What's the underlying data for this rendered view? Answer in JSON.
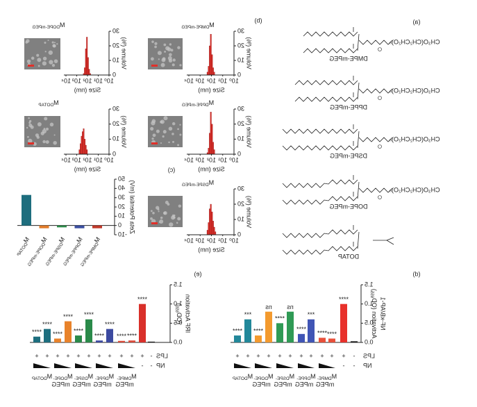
{
  "panel_labels": [
    "(a)",
    "(b)",
    "(c)",
    "(d)",
    "(e)"
  ],
  "structures": [
    "DMPE-mPEG",
    "DPPE-mPEG",
    "DSPE-mPEG",
    "DOPE-mPEG",
    "DOTAP"
  ],
  "peg_group": "CH₃O(CH₂CH₂O)ₙ",
  "chart_data": [
    {
      "type": "histogram",
      "title_prefix": "M",
      "title": "DMPE-mPEG",
      "x_label": "Size (nm)",
      "y_label": "Volume (%)",
      "color": "#e0302a",
      "log_x": true,
      "bins": [
        50,
        63,
        79,
        100,
        126,
        158,
        200,
        251
      ],
      "values": [
        2,
        5,
        14,
        28,
        20,
        6,
        2
      ],
      "xlim": [
        1,
        10000
      ],
      "xticks": [
        {
          "value": 1,
          "label": "10⁰"
        },
        {
          "value": 10,
          "label": "10¹"
        },
        {
          "value": 100,
          "label": "10²"
        },
        {
          "value": 1000,
          "label": "10³"
        },
        {
          "value": 10000,
          "label": "10⁴"
        }
      ],
      "ylim": [
        0,
        30
      ],
      "yticks": [
        0,
        10,
        20,
        30
      ]
    },
    {
      "type": "histogram",
      "title_prefix": "M",
      "title": "DPPE-mPEG",
      "x_label": "Size (nm)",
      "y_label": "Volume (%)",
      "color": "#e0302a",
      "log_x": true,
      "bins": [
        50,
        63,
        79,
        100,
        126,
        158,
        200,
        251
      ],
      "values": [
        3,
        8,
        20,
        28,
        14,
        4,
        1
      ],
      "xlim": [
        1,
        10000
      ],
      "xticks": [
        {
          "value": 1,
          "label": "10⁰"
        },
        {
          "value": 10,
          "label": "10¹"
        },
        {
          "value": 100,
          "label": "10²"
        },
        {
          "value": 1000,
          "label": "10³"
        },
        {
          "value": 10000,
          "label": "10⁴"
        }
      ],
      "ylim": [
        0,
        30
      ],
      "yticks": [
        0,
        10,
        20,
        30
      ]
    },
    {
      "type": "histogram",
      "title_prefix": "M",
      "title": "DSPE-mPEG",
      "x_label": "Size (nm)",
      "y_label": "Volume (%)",
      "color": "#e0302a",
      "log_x": true,
      "bins": [
        40,
        50,
        63,
        79,
        100,
        126,
        158,
        200,
        251
      ],
      "values": [
        2,
        5,
        9,
        15,
        20,
        17,
        8,
        3
      ],
      "xlim": [
        1,
        10000
      ],
      "xticks": [
        {
          "value": 1,
          "label": "10⁰"
        },
        {
          "value": 10,
          "label": "10¹"
        },
        {
          "value": 100,
          "label": "10²"
        },
        {
          "value": 1000,
          "label": "10³"
        },
        {
          "value": 10000,
          "label": "10⁴"
        }
      ],
      "ylim": [
        0,
        30
      ],
      "yticks": [
        0,
        10,
        20,
        30
      ]
    },
    {
      "type": "histogram",
      "title_prefix": "M",
      "title": "DOPE-mPEG",
      "x_label": "Size (nm)",
      "y_label": "Volume (%)",
      "color": "#e0302a",
      "log_x": true,
      "bins": [
        50,
        63,
        79,
        100,
        126,
        158,
        200,
        251
      ],
      "values": [
        1,
        4,
        12,
        26,
        18,
        5,
        1
      ],
      "xlim": [
        1,
        10000
      ],
      "xticks": [
        {
          "value": 1,
          "label": "10⁰"
        },
        {
          "value": 10,
          "label": "10¹"
        },
        {
          "value": 100,
          "label": "10²"
        },
        {
          "value": 1000,
          "label": "10³"
        },
        {
          "value": 10000,
          "label": "10⁴"
        }
      ],
      "ylim": [
        0,
        30
      ],
      "yticks": [
        0,
        10,
        20,
        30
      ]
    },
    {
      "type": "histogram",
      "title_prefix": "M",
      "title": "DOTAP",
      "x_label": "Size (nm)",
      "y_label": "Volume (%)",
      "color": "#e0302a",
      "log_x": true,
      "bins": [
        100,
        126,
        158,
        200,
        251,
        316,
        398,
        501,
        631
      ],
      "values": [
        3,
        6,
        10,
        17,
        15,
        12,
        7,
        3
      ],
      "xlim": [
        1,
        10000
      ],
      "xticks": [
        {
          "value": 1,
          "label": "10⁰"
        },
        {
          "value": 10,
          "label": "10¹"
        },
        {
          "value": 100,
          "label": "10²"
        },
        {
          "value": 1000,
          "label": "10³"
        },
        {
          "value": 10000,
          "label": "10⁴"
        }
      ],
      "ylim": [
        0,
        30
      ],
      "yticks": [
        0,
        10,
        20,
        30
      ]
    },
    {
      "type": "bar",
      "y_label": "Zeta Potential (mV)",
      "category_prefix": "M",
      "categories": [
        "DMPE-mPEG",
        "DPPE-mPEG",
        "DSPE-mPEG",
        "DOPE-mPEG",
        "DOTAP"
      ],
      "values": [
        -3,
        -3,
        -2,
        -3,
        33
      ],
      "colors": [
        "#c0392b",
        "#3b4fa0",
        "#2e8b4a",
        "#e07b2a",
        "#1e6e7e"
      ],
      "ylim": [
        -10,
        50
      ],
      "yticks": [
        -10,
        0,
        10,
        20,
        30,
        40,
        50
      ]
    },
    {
      "type": "grouped_bar",
      "y_label": "NF-κB/AP-1",
      "y_label_line2": "Activation (OD",
      "y_label_sub": "655",
      "y_label_end": ")",
      "values": [
        0.03,
        1.0,
        0.1,
        0.12,
        0.6,
        0.22,
        0.8,
        0.5,
        0.8,
        0.18,
        0.6,
        0.18
      ],
      "colors": [
        "#1a1a1a",
        "#e8312b",
        "#e8503a",
        "#e8503a",
        "#4055b5",
        "#4055b5",
        "#2f9a55",
        "#2f9a55",
        "#f39a2e",
        "#f39a2e",
        "#22889a",
        "#22889a"
      ],
      "sig_labels": [
        null,
        "****",
        "****",
        "****",
        "***",
        "****",
        "ns",
        "****",
        "ns",
        "****",
        "***",
        "****"
      ],
      "lps_label": "LPS",
      "np_label": "NP",
      "lps": [
        "-",
        "+",
        "+",
        "+",
        "+",
        "+",
        "+",
        "+",
        "+",
        "+",
        "+",
        "+"
      ],
      "np": [
        "-",
        "-"
      ],
      "group_prefix": "M",
      "groups": [
        "DMPE-",
        "DPPE-",
        "DSPE-",
        "DOPE-",
        "DOTAP"
      ],
      "groups_line2": [
        "mPEG",
        "mPEG",
        "mPEG",
        "mPEG",
        null
      ],
      "ylim": [
        0,
        1.5
      ],
      "yticks": [
        {
          "value": 0,
          "label": "0.0"
        },
        0.5,
        {
          "value": 1,
          "label": "1.0"
        },
        1.5
      ]
    },
    {
      "type": "grouped_bar",
      "y_label": "IRF Activation",
      "y_label_line2": "(OD",
      "y_label_sub": "655",
      "y_label_end": ")",
      "values": [
        0.02,
        1.0,
        0.05,
        0.04,
        0.35,
        0.05,
        0.6,
        0.18,
        0.55,
        0.1,
        0.35,
        0.15
      ],
      "colors": [
        "#1a1a1a",
        "#d9302a",
        "#d94a3a",
        "#d94a3a",
        "#3c4aa0",
        "#3c4aa0",
        "#2a8a4a",
        "#2a8a4a",
        "#e8822a",
        "#e8822a",
        "#1d6e7e",
        "#1d6e7e"
      ],
      "sig_labels": [
        null,
        "****",
        "****",
        "****",
        "****",
        "****",
        "****",
        "****",
        "****",
        "****",
        "****",
        "****"
      ],
      "lps_label": "LPS",
      "np_label": "NP",
      "lps": [
        "-",
        "+",
        "+",
        "+",
        "+",
        "+",
        "+",
        "+",
        "+",
        "+",
        "+",
        "+"
      ],
      "np": [
        "-",
        "-"
      ],
      "group_prefix": "M",
      "groups": [
        "DMPE-",
        "DPPE-",
        "DSPE-",
        "DOPE-",
        "DOTAP"
      ],
      "groups_line2": [
        "mPEG",
        "mPEG",
        "mPEG",
        "mPEG",
        null
      ],
      "ylim": [
        0,
        1.5
      ],
      "yticks": [
        {
          "value": 0,
          "label": "0.0"
        },
        0.5,
        {
          "value": 1,
          "label": "1.0"
        },
        1.5
      ]
    }
  ]
}
